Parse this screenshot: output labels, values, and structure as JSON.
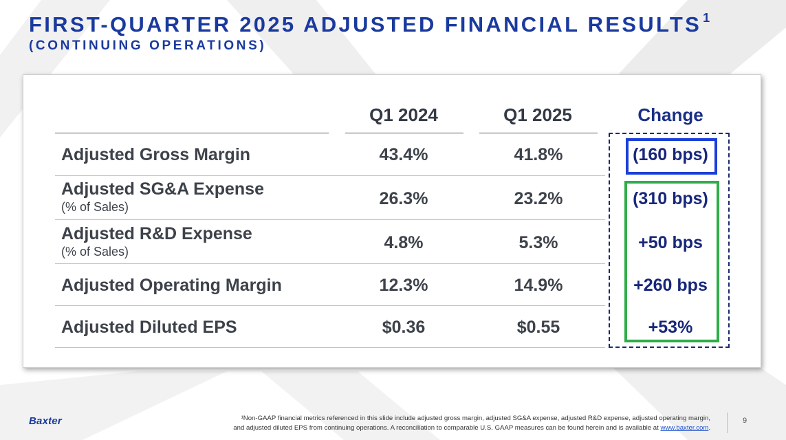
{
  "header": {
    "title": "FIRST-QUARTER 2025 ADJUSTED FINANCIAL RESULTS",
    "title_footnote_marker": "1",
    "subtitle": "(CONTINUING OPERATIONS)"
  },
  "table": {
    "columns": [
      "Q1 2024",
      "Q1 2025",
      "Change"
    ],
    "rows": [
      {
        "label": "Adjusted Gross Margin",
        "sub": "",
        "q1_2024": "43.4%",
        "q1_2025": "41.8%",
        "change": "(160 bps)"
      },
      {
        "label": "Adjusted SG&A Expense",
        "sub": "(% of Sales)",
        "q1_2024": "26.3%",
        "q1_2025": "23.2%",
        "change": "(310 bps)"
      },
      {
        "label": "Adjusted R&D Expense",
        "sub": "(% of Sales)",
        "q1_2024": "4.8%",
        "q1_2025": "5.3%",
        "change": "+50 bps"
      },
      {
        "label": "Adjusted Operating Margin",
        "sub": "",
        "q1_2024": "12.3%",
        "q1_2025": "14.9%",
        "change": "+260 bps"
      },
      {
        "label": "Adjusted Diluted EPS",
        "sub": "",
        "q1_2024": "$0.36",
        "q1_2025": "$0.55",
        "change": "+53%"
      }
    ]
  },
  "footer": {
    "brand": "Baxter",
    "footnote_line1": "¹Non-GAAP financial metrics referenced in this slide include adjusted gross margin, adjusted SG&A expense, adjusted R&D expense, adjusted operating margin,",
    "footnote_line2": "and adjusted diluted EPS from continuing operations. A reconciliation to comparable U.S. GAAP measures can be found herein and is available at ",
    "footnote_link": "www.baxter.com",
    "footnote_end": ".",
    "page_number": "9"
  },
  "colors": {
    "title": "#1a3a9e",
    "change_text": "#17277a",
    "highlight_blue": "#1b3fd8",
    "highlight_green": "#2fad48"
  }
}
